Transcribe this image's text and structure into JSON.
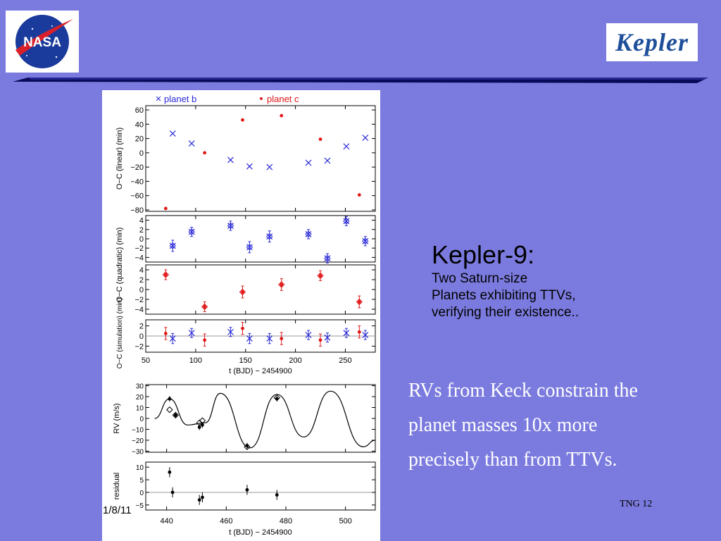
{
  "slide": {
    "title": "Kepler-9:",
    "subtitle_lines": [
      "Two Saturn-size",
      "Planets exhibiting TTVs,",
      "verifying their existence.."
    ],
    "body": [
      "RVs from Keck constrain the",
      "planet masses 10x more",
      "precisely than from TTVs."
    ],
    "date": "1/8/11",
    "footer": "TNG 12",
    "logos": {
      "left": "NASA",
      "right": "Kepler"
    },
    "colors": {
      "background": "#7b7bdf",
      "planet_b": "#2a2ad8",
      "planet_c": "#e01818",
      "bar": "#0a0a5a"
    }
  },
  "chart_data": [
    {
      "type": "scatter",
      "legend": [
        {
          "name": "planet  b",
          "marker": "×",
          "color": "#2a2ad8"
        },
        {
          "name": "planet  c",
          "marker": "•",
          "color": "#e01818"
        }
      ],
      "ylabel_main": "O−C",
      "ylabel_sub": "linear",
      "ylabel_unit": "(min)",
      "xlim": [
        50,
        280
      ],
      "ylim": [
        -82,
        66
      ],
      "yticks": [
        "60",
        "40",
        "20",
        "0",
        "−20",
        "−40",
        "−60",
        "−80"
      ],
      "ytick_values": [
        60,
        40,
        20,
        0,
        -20,
        -40,
        -60,
        -80
      ],
      "series": [
        {
          "name": "planet  b",
          "x": [
            77,
            96,
            135,
            154,
            174,
            213,
            232,
            251,
            270
          ],
          "y": [
            27,
            13,
            -10,
            -19,
            -20,
            -14,
            -11,
            9,
            21
          ]
        },
        {
          "name": "planet  c",
          "x": [
            70,
            109,
            147,
            186,
            225,
            264
          ],
          "y": [
            -78,
            0,
            46,
            52,
            19,
            -59
          ]
        }
      ]
    },
    {
      "type": "scatter",
      "ylabel_main": "O−C",
      "ylabel_sub": "quadratic",
      "ylabel_unit": "(min)",
      "ylim": [
        -5,
        5
      ],
      "yticks": [
        "4",
        "2",
        "0",
        "−2",
        "−4"
      ],
      "ytick_values": [
        4,
        2,
        0,
        -2,
        -4
      ],
      "series": [
        {
          "name": "planet  b",
          "x": [
            77,
            96,
            135,
            154,
            174,
            213,
            232,
            251,
            270
          ],
          "y": [
            -1.5,
            1.5,
            2.8,
            -1.8,
            0.5,
            1.0,
            -4.2,
            3.8,
            -0.5
          ],
          "err": [
            1.2,
            1.0,
            1.0,
            1.2,
            1.2,
            1.0,
            1.0,
            1.0,
            1.0
          ]
        },
        {
          "name": "planet  c",
          "x": [
            70,
            109,
            147,
            186,
            225,
            264
          ],
          "y": [
            3.0,
            -3.5,
            -0.5,
            1.0,
            2.8,
            -2.5
          ],
          "err": [
            1.0,
            1.0,
            1.2,
            1.2,
            1.0,
            1.2
          ]
        }
      ]
    },
    {
      "type": "scatter",
      "ylabel_main": "O−C",
      "ylabel_sub": "simulation",
      "ylabel_unit": "(min)",
      "xlabel": "t  (BJD)  −  2454900",
      "xticks": [
        "50",
        "100",
        "150",
        "200",
        "250"
      ],
      "xtick_values": [
        50,
        100,
        150,
        200,
        250
      ],
      "ylim": [
        -3.2,
        3.2
      ],
      "yticks": [
        "2",
        "0",
        "−2"
      ],
      "ytick_values": [
        2,
        0,
        -2
      ],
      "series": [
        {
          "name": "planet  b",
          "x": [
            77,
            96,
            135,
            154,
            174,
            213,
            232,
            251,
            270
          ],
          "y": [
            -0.5,
            0.6,
            0.8,
            -0.5,
            -0.5,
            0.2,
            -0.3,
            0.6,
            0.2
          ],
          "err": [
            1.0,
            0.9,
            0.9,
            1.0,
            1.0,
            0.9,
            0.9,
            0.9,
            0.9
          ]
        },
        {
          "name": "planet  c",
          "x": [
            70,
            109,
            147,
            186,
            225,
            264
          ],
          "y": [
            0.5,
            -0.8,
            1.5,
            -0.5,
            -0.8,
            0.8
          ],
          "err": [
            1.2,
            1.2,
            1.2,
            1.2,
            1.2,
            1.2
          ]
        }
      ]
    },
    {
      "type": "line",
      "ylabel": "RV  (m/s)",
      "xlim": [
        433,
        510
      ],
      "ylim": [
        -31,
        31
      ],
      "yticks": [
        "30",
        "20",
        "10",
        "0",
        "−10",
        "−20",
        "−30"
      ],
      "ytick_values": [
        30,
        20,
        10,
        0,
        -10,
        -20,
        -30
      ],
      "model_peaks": [
        [
          436,
          0
        ],
        [
          441,
          18
        ],
        [
          447,
          -6
        ],
        [
          453,
          -4
        ],
        [
          458,
          23
        ],
        [
          468,
          -27
        ],
        [
          477,
          22
        ],
        [
          486,
          -17
        ],
        [
          495,
          25
        ],
        [
          506,
          -26
        ],
        [
          510,
          -20
        ]
      ],
      "observed": {
        "x": [
          441,
          443,
          451,
          452,
          467,
          477
        ],
        "y": [
          18,
          3,
          -8,
          -6,
          -25,
          18
        ]
      },
      "model_points": {
        "x": [
          441,
          443,
          451,
          452,
          467,
          477
        ],
        "y": [
          8,
          3,
          -4,
          -2,
          -26,
          19
        ]
      }
    },
    {
      "type": "scatter",
      "ylabel": "residual",
      "xlabel": "t  (BJD)  −  2454900",
      "xticks": [
        "440",
        "460",
        "480",
        "500"
      ],
      "xtick_values": [
        440,
        460,
        480,
        500
      ],
      "ylim": [
        -7,
        12
      ],
      "yticks": [
        "10",
        "5",
        "0",
        "−5"
      ],
      "ytick_values": [
        10,
        5,
        0,
        -5
      ],
      "series": [
        {
          "name": "residual",
          "x": [
            441,
            442,
            451,
            452,
            467,
            477
          ],
          "y": [
            8,
            0,
            -3,
            -2,
            1,
            -1
          ],
          "err": [
            2,
            2,
            2,
            2,
            2,
            2
          ]
        }
      ]
    }
  ]
}
